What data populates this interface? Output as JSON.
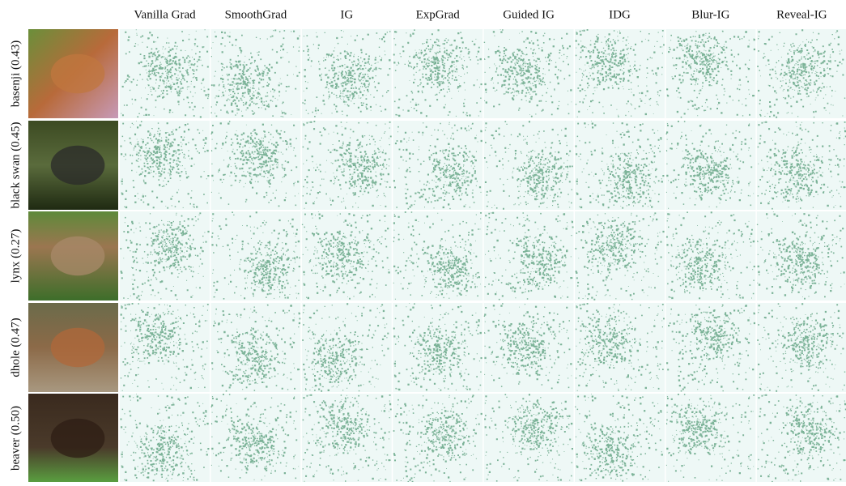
{
  "columns": [
    "Vanilla Grad",
    "SmoothGrad",
    "IG",
    "ExpGrad",
    "Guided IG",
    "IDG",
    "Blur-IG",
    "Reveal-IG"
  ],
  "rows": [
    {
      "label": "basenji (0.43)"
    },
    {
      "label": "black swan (0.45)"
    },
    {
      "label": "lynx (0.27)"
    },
    {
      "label": "dhole (0.47)"
    },
    {
      "label": "beaver (0.50)"
    }
  ]
}
